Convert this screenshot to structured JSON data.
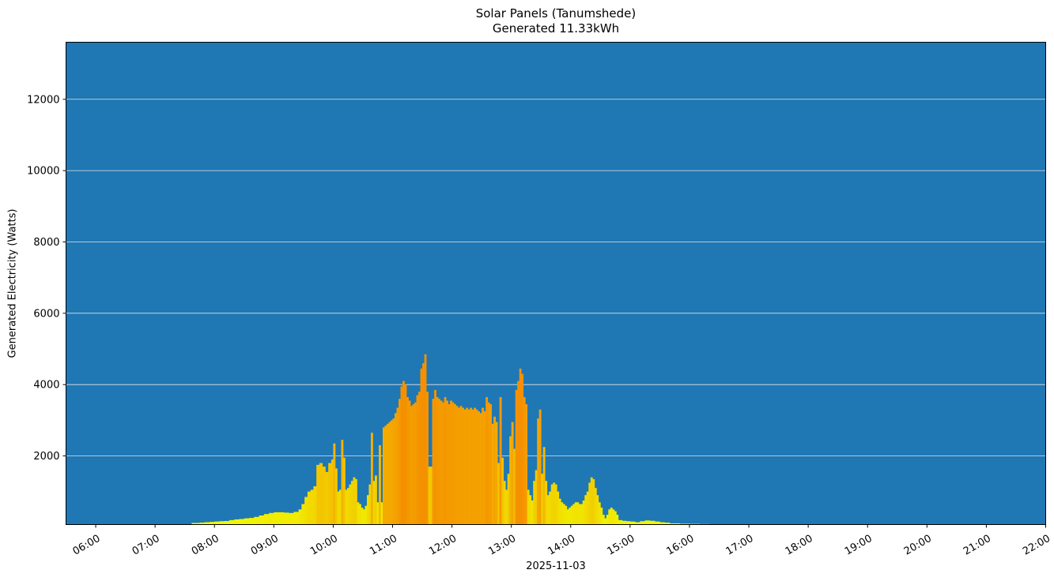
{
  "chart_data": {
    "type": "bar",
    "title": "Solar Panels (Tanumshede)",
    "subtitle": "Generated 11.33kWh",
    "xlabel": "2025-11-03",
    "ylabel": "Generated Electricity (Watts)",
    "ylim": [
      75,
      13600
    ],
    "xlim": [
      "05:30",
      "22:00"
    ],
    "grid": "y",
    "background_color": "#1f77b4",
    "grid_color": "#e6e6e6",
    "color_low": "#f0ff00",
    "color_high": "#f59000",
    "yticks": [
      2000,
      4000,
      6000,
      8000,
      10000,
      12000
    ],
    "xticks": [
      "06:00",
      "07:00",
      "08:00",
      "09:00",
      "10:00",
      "11:00",
      "12:00",
      "13:00",
      "14:00",
      "15:00",
      "16:00",
      "17:00",
      "18:00",
      "19:00",
      "20:00",
      "21:00",
      "22:00"
    ],
    "series": [
      {
        "name": "Generated Electricity",
        "points": [
          [
            "07:37",
            120
          ],
          [
            "07:45",
            130
          ],
          [
            "07:50",
            140
          ],
          [
            "07:55",
            150
          ],
          [
            "08:00",
            160
          ],
          [
            "08:05",
            170
          ],
          [
            "08:10",
            175
          ],
          [
            "08:15",
            200
          ],
          [
            "08:20",
            220
          ],
          [
            "08:25",
            230
          ],
          [
            "08:30",
            250
          ],
          [
            "08:35",
            260
          ],
          [
            "08:40",
            290
          ],
          [
            "08:45",
            330
          ],
          [
            "08:50",
            370
          ],
          [
            "08:55",
            400
          ],
          [
            "09:00",
            420
          ],
          [
            "09:05",
            420
          ],
          [
            "09:10",
            410
          ],
          [
            "09:15",
            400
          ],
          [
            "09:20",
            430
          ],
          [
            "09:25",
            500
          ],
          [
            "09:28",
            650
          ],
          [
            "09:31",
            850
          ],
          [
            "09:34",
            1000
          ],
          [
            "09:37",
            1050
          ],
          [
            "09:40",
            1150
          ],
          [
            "09:43",
            1750
          ],
          [
            "09:46",
            1800
          ],
          [
            "09:49",
            1700
          ],
          [
            "09:52",
            1550
          ],
          [
            "09:55",
            1800
          ],
          [
            "09:58",
            1900
          ],
          [
            "10:00",
            2350
          ],
          [
            "10:02",
            1650
          ],
          [
            "10:04",
            1000
          ],
          [
            "10:06",
            1050
          ],
          [
            "10:08",
            2450
          ],
          [
            "10:10",
            1950
          ],
          [
            "10:12",
            1050
          ],
          [
            "10:14",
            1100
          ],
          [
            "10:16",
            1200
          ],
          [
            "10:18",
            1300
          ],
          [
            "10:20",
            1400
          ],
          [
            "10:22",
            1350
          ],
          [
            "10:24",
            700
          ],
          [
            "10:26",
            650
          ],
          [
            "10:28",
            550
          ],
          [
            "10:30",
            500
          ],
          [
            "10:32",
            600
          ],
          [
            "10:34",
            900
          ],
          [
            "10:36",
            1200
          ],
          [
            "10:38",
            2650
          ],
          [
            "10:40",
            1300
          ],
          [
            "10:42",
            1450
          ],
          [
            "10:44",
            700
          ],
          [
            "10:46",
            2300
          ],
          [
            "10:48",
            700
          ],
          [
            "10:50",
            2800
          ],
          [
            "10:52",
            2850
          ],
          [
            "10:54",
            2900
          ],
          [
            "10:56",
            2950
          ],
          [
            "10:58",
            3000
          ],
          [
            "11:00",
            3050
          ],
          [
            "11:02",
            3200
          ],
          [
            "11:04",
            3350
          ],
          [
            "11:06",
            3600
          ],
          [
            "11:08",
            3950
          ],
          [
            "11:10",
            4100
          ],
          [
            "11:12",
            4000
          ],
          [
            "11:14",
            3650
          ],
          [
            "11:16",
            3550
          ],
          [
            "11:18",
            3400
          ],
          [
            "11:20",
            3450
          ],
          [
            "11:22",
            3500
          ],
          [
            "11:24",
            3700
          ],
          [
            "11:26",
            3800
          ],
          [
            "11:28",
            4450
          ],
          [
            "11:30",
            4600
          ],
          [
            "11:32",
            4850
          ],
          [
            "11:34",
            3800
          ],
          [
            "11:36",
            1700
          ],
          [
            "11:38",
            1700
          ],
          [
            "11:40",
            3600
          ],
          [
            "11:42",
            3850
          ],
          [
            "11:44",
            3650
          ],
          [
            "11:46",
            3600
          ],
          [
            "11:48",
            3550
          ],
          [
            "11:50",
            3500
          ],
          [
            "11:52",
            3650
          ],
          [
            "11:54",
            3550
          ],
          [
            "11:56",
            3450
          ],
          [
            "11:58",
            3550
          ],
          [
            "12:00",
            3500
          ],
          [
            "12:02",
            3450
          ],
          [
            "12:04",
            3400
          ],
          [
            "12:06",
            3350
          ],
          [
            "12:08",
            3400
          ],
          [
            "12:10",
            3350
          ],
          [
            "12:12",
            3300
          ],
          [
            "12:14",
            3350
          ],
          [
            "12:16",
            3300
          ],
          [
            "12:18",
            3350
          ],
          [
            "12:20",
            3300
          ],
          [
            "12:22",
            3350
          ],
          [
            "12:24",
            3300
          ],
          [
            "12:26",
            3250
          ],
          [
            "12:28",
            3200
          ],
          [
            "12:30",
            3350
          ],
          [
            "12:32",
            3250
          ],
          [
            "12:34",
            3650
          ],
          [
            "12:36",
            3500
          ],
          [
            "12:38",
            3450
          ],
          [
            "12:40",
            2900
          ],
          [
            "12:42",
            3100
          ],
          [
            "12:44",
            2950
          ],
          [
            "12:46",
            1800
          ],
          [
            "12:48",
            3650
          ],
          [
            "12:50",
            1950
          ],
          [
            "12:52",
            1300
          ],
          [
            "12:54",
            1050
          ],
          [
            "12:56",
            1500
          ],
          [
            "12:58",
            2550
          ],
          [
            "13:00",
            2950
          ],
          [
            "13:02",
            2200
          ],
          [
            "13:04",
            3850
          ],
          [
            "13:06",
            4100
          ],
          [
            "13:08",
            4450
          ],
          [
            "13:10",
            4300
          ],
          [
            "13:12",
            3650
          ],
          [
            "13:14",
            3450
          ],
          [
            "13:16",
            1050
          ],
          [
            "13:18",
            900
          ],
          [
            "13:20",
            750
          ],
          [
            "13:22",
            1300
          ],
          [
            "13:24",
            1600
          ],
          [
            "13:26",
            3050
          ],
          [
            "13:28",
            3300
          ],
          [
            "13:30",
            1500
          ],
          [
            "13:32",
            2250
          ],
          [
            "13:34",
            1300
          ],
          [
            "13:36",
            900
          ],
          [
            "13:38",
            1000
          ],
          [
            "13:40",
            1200
          ],
          [
            "13:42",
            1250
          ],
          [
            "13:44",
            1200
          ],
          [
            "13:46",
            1000
          ],
          [
            "13:48",
            800
          ],
          [
            "13:50",
            700
          ],
          [
            "13:52",
            650
          ],
          [
            "13:54",
            600
          ],
          [
            "13:56",
            500
          ],
          [
            "13:58",
            550
          ],
          [
            "14:00",
            600
          ],
          [
            "14:02",
            650
          ],
          [
            "14:04",
            700
          ],
          [
            "14:06",
            700
          ],
          [
            "14:08",
            650
          ],
          [
            "14:10",
            650
          ],
          [
            "14:12",
            750
          ],
          [
            "14:14",
            900
          ],
          [
            "14:16",
            1000
          ],
          [
            "14:18",
            1250
          ],
          [
            "14:20",
            1400
          ],
          [
            "14:22",
            1350
          ],
          [
            "14:24",
            1100
          ],
          [
            "14:26",
            900
          ],
          [
            "14:28",
            700
          ],
          [
            "14:30",
            550
          ],
          [
            "14:32",
            350
          ],
          [
            "14:34",
            250
          ],
          [
            "14:36",
            350
          ],
          [
            "14:38",
            500
          ],
          [
            "14:40",
            550
          ],
          [
            "14:42",
            500
          ],
          [
            "14:44",
            450
          ],
          [
            "14:46",
            350
          ],
          [
            "14:48",
            200
          ],
          [
            "14:52",
            180
          ],
          [
            "14:56",
            170
          ],
          [
            "15:00",
            160
          ],
          [
            "15:05",
            140
          ],
          [
            "15:10",
            170
          ],
          [
            "15:15",
            190
          ],
          [
            "15:20",
            180
          ],
          [
            "15:25",
            160
          ],
          [
            "15:30",
            140
          ],
          [
            "15:35",
            130
          ],
          [
            "15:40",
            110
          ],
          [
            "15:50",
            100
          ],
          [
            "16:00",
            95
          ],
          [
            "16:10",
            90
          ],
          [
            "16:20",
            85
          ],
          [
            "16:30",
            82
          ],
          [
            "16:40",
            80
          ]
        ]
      }
    ]
  }
}
